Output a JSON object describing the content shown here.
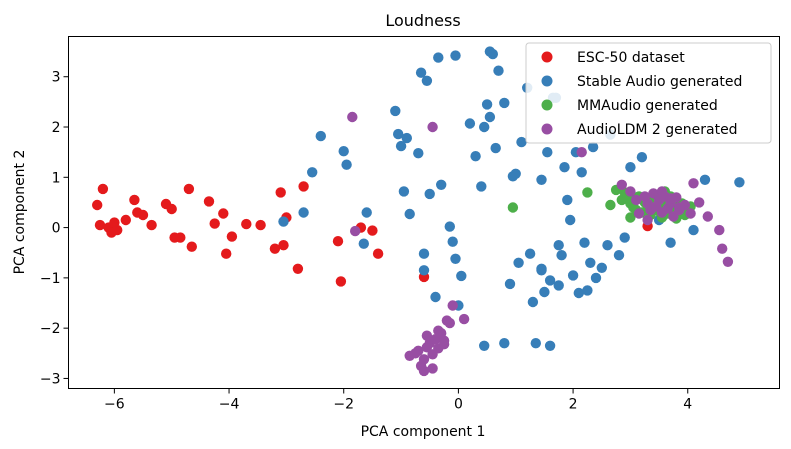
{
  "chart_data": {
    "type": "scatter",
    "title": "Loudness",
    "xlabel": "PCA component 1",
    "ylabel": "PCA component 2",
    "xlim": [
      -6.8,
      5.6
    ],
    "ylim": [
      -3.2,
      3.8
    ],
    "xticks": [
      -6,
      -4,
      -2,
      0,
      2,
      4
    ],
    "yticks": [
      -3,
      -2,
      -1,
      0,
      1,
      2,
      3
    ],
    "xtick_labels": [
      "−6",
      "−4",
      "−2",
      "0",
      "2",
      "4"
    ],
    "ytick_labels": [
      "−3",
      "−2",
      "−1",
      "0",
      "1",
      "2",
      "3"
    ],
    "grid": false,
    "legend_position": "top-right",
    "series": [
      {
        "name": "ESC-50 dataset",
        "color": "#e41a1c",
        "x": [
          -6.3,
          -6.2,
          -6.25,
          -6.1,
          -6.05,
          -5.95,
          -6.0,
          -5.8,
          -5.65,
          -5.6,
          -5.5,
          -5.35,
          -5.1,
          -5.0,
          -4.95,
          -4.85,
          -4.7,
          -4.65,
          -4.35,
          -4.25,
          -4.1,
          -4.05,
          -3.95,
          -3.7,
          -3.45,
          -3.2,
          -3.1,
          -3.05,
          -3.0,
          -2.8,
          -2.7,
          -2.1,
          -2.05,
          -1.7,
          -1.5,
          -1.4,
          -0.6,
          3.3
        ],
        "y": [
          0.45,
          0.77,
          0.05,
          0.0,
          -0.1,
          -0.05,
          0.1,
          0.15,
          0.55,
          0.3,
          0.25,
          0.05,
          0.47,
          0.37,
          -0.2,
          -0.2,
          0.77,
          -0.38,
          0.52,
          0.08,
          0.28,
          -0.52,
          -0.18,
          0.07,
          0.05,
          -0.42,
          0.7,
          -0.35,
          0.2,
          -0.82,
          0.82,
          -0.27,
          -1.07,
          0.0,
          -0.06,
          -0.52,
          -0.98,
          0.03
        ]
      },
      {
        "name": "Stable Audio generated",
        "color": "#377eb8",
        "x": [
          -3.05,
          -2.7,
          -2.55,
          -2.4,
          -2.0,
          -1.95,
          -1.65,
          -1.6,
          -1.1,
          -1.05,
          -1.0,
          -0.95,
          -0.9,
          -0.85,
          -0.7,
          -0.65,
          -0.6,
          -0.6,
          -0.55,
          -0.5,
          -0.4,
          -0.35,
          -0.3,
          -0.15,
          -0.1,
          -0.05,
          -0.05,
          0.0,
          0.05,
          0.2,
          0.3,
          0.4,
          0.45,
          0.5,
          0.55,
          0.55,
          0.6,
          0.65,
          0.7,
          0.8,
          0.9,
          0.95,
          1.0,
          1.05,
          1.1,
          1.2,
          1.25,
          1.3,
          1.35,
          1.45,
          1.45,
          1.5,
          1.55,
          1.6,
          1.65,
          1.7,
          1.75,
          1.8,
          1.85,
          1.9,
          1.95,
          2.0,
          2.05,
          2.1,
          2.15,
          2.2,
          2.25,
          2.3,
          2.35,
          2.4,
          2.5,
          2.6,
          2.65,
          2.8,
          2.9,
          3.0,
          3.1,
          3.2,
          3.3,
          3.5,
          3.7,
          3.8,
          3.9,
          4.1,
          4.3,
          4.9,
          0.45,
          0.8,
          1.45,
          1.6,
          1.75
        ],
        "y": [
          0.12,
          0.3,
          1.1,
          1.82,
          1.52,
          1.25,
          -0.32,
          0.3,
          2.32,
          1.86,
          1.62,
          0.72,
          1.78,
          0.27,
          1.48,
          3.08,
          -0.52,
          -0.85,
          2.92,
          0.67,
          -1.38,
          3.38,
          0.85,
          0.02,
          -0.28,
          -0.62,
          3.42,
          -1.55,
          -0.96,
          2.07,
          1.42,
          0.82,
          2.0,
          2.45,
          2.2,
          3.5,
          3.45,
          1.58,
          3.12,
          2.48,
          -1.12,
          1.02,
          1.07,
          -0.7,
          1.7,
          2.78,
          -0.52,
          -1.48,
          -2.3,
          0.95,
          -0.82,
          -1.28,
          1.5,
          -2.35,
          2.58,
          2.58,
          -0.35,
          -0.55,
          1.2,
          0.55,
          0.15,
          -0.95,
          1.5,
          -1.3,
          1.1,
          -0.3,
          -1.25,
          -0.7,
          1.6,
          -1.0,
          -0.8,
          -0.35,
          1.85,
          -0.55,
          -0.2,
          1.2,
          0.6,
          1.4,
          0.35,
          0.15,
          -0.3,
          0.35,
          0.4,
          -0.05,
          0.95,
          0.9,
          -2.35,
          -2.3,
          -0.85,
          -1.05,
          -1.15
        ]
      },
      {
        "name": "MMAudio generated",
        "color": "#4daf4a",
        "x": [
          0.95,
          2.25,
          2.75,
          2.85,
          2.9,
          2.95,
          3.0,
          3.05,
          3.1,
          3.15,
          3.2,
          3.25,
          3.3,
          3.35,
          3.4,
          3.45,
          3.5,
          3.55,
          3.6,
          3.65,
          3.7,
          3.75,
          3.8,
          3.85,
          3.9,
          3.95,
          4.0,
          4.05,
          2.65,
          3.15,
          3.45,
          3.75,
          3.0,
          3.6
        ],
        "y": [
          0.4,
          0.7,
          0.75,
          0.55,
          0.7,
          0.6,
          0.48,
          0.4,
          0.35,
          0.62,
          0.3,
          0.5,
          0.42,
          0.25,
          0.55,
          0.38,
          0.32,
          0.2,
          0.48,
          0.28,
          0.62,
          0.38,
          0.18,
          0.3,
          0.48,
          0.25,
          0.36,
          0.42,
          0.45,
          0.58,
          0.65,
          0.55,
          0.2,
          0.72
        ]
      },
      {
        "name": "AudioLDM 2 generated",
        "color": "#984ea3",
        "x": [
          -1.85,
          -1.8,
          -0.45,
          -0.85,
          -0.75,
          -0.7,
          -0.65,
          -0.6,
          -0.55,
          -0.5,
          -0.45,
          -0.4,
          -0.35,
          -0.3,
          -0.25,
          -0.2,
          -0.15,
          -0.1,
          0.1,
          -0.6,
          -0.45,
          -0.35,
          -0.55,
          -0.25,
          2.15,
          2.85,
          3.0,
          3.1,
          3.25,
          3.3,
          3.35,
          3.4,
          3.45,
          3.5,
          3.55,
          3.6,
          3.65,
          3.7,
          3.75,
          3.8,
          3.85,
          3.95,
          4.05,
          4.1,
          4.2,
          4.35,
          4.55,
          4.6,
          4.7,
          3.15,
          3.55,
          3.85,
          3.3,
          3.7
        ],
        "y": [
          2.2,
          -0.07,
          2.0,
          -2.55,
          -2.5,
          -2.45,
          -2.75,
          -2.62,
          -2.38,
          -2.3,
          -2.52,
          -2.22,
          -2.4,
          -2.1,
          -2.25,
          -1.85,
          -1.9,
          -1.55,
          -1.82,
          -2.85,
          -2.8,
          -2.05,
          -2.15,
          -2.32,
          1.5,
          0.85,
          0.72,
          0.55,
          0.62,
          0.48,
          0.35,
          0.68,
          0.42,
          0.55,
          0.3,
          0.62,
          0.38,
          0.48,
          0.22,
          0.6,
          0.35,
          0.45,
          0.28,
          0.88,
          0.5,
          0.22,
          -0.05,
          -0.42,
          -0.68,
          0.28,
          0.72,
          0.4,
          0.15,
          0.58
        ]
      }
    ]
  }
}
